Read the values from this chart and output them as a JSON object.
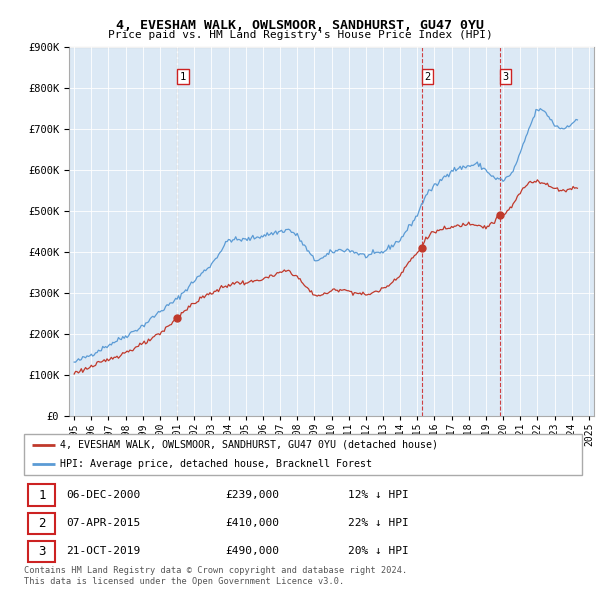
{
  "title": "4, EVESHAM WALK, OWLSMOOR, SANDHURST, GU47 0YU",
  "subtitle": "Price paid vs. HM Land Registry's House Price Index (HPI)",
  "legend_line1": "4, EVESHAM WALK, OWLSMOOR, SANDHURST, GU47 0YU (detached house)",
  "legend_line2": "HPI: Average price, detached house, Bracknell Forest",
  "footer1": "Contains HM Land Registry data © Crown copyright and database right 2024.",
  "footer2": "This data is licensed under the Open Government Licence v3.0.",
  "transactions": [
    {
      "num": 1,
      "date": "06-DEC-2000",
      "price": 239000,
      "pct": "12% ↓ HPI",
      "year": 2001.0
    },
    {
      "num": 2,
      "date": "07-APR-2015",
      "price": 410000,
      "pct": "22% ↓ HPI",
      "year": 2015.27
    },
    {
      "num": 3,
      "date": "21-OCT-2019",
      "price": 490000,
      "pct": "20% ↓ HPI",
      "year": 2019.8
    }
  ],
  "hpi_color": "#5b9bd5",
  "price_color": "#c0392b",
  "vline1_color": "#888888",
  "vline2_color": "#cc2222",
  "bg_color": "#dce9f5",
  "ylim": [
    0,
    900000
  ],
  "yticks": [
    0,
    100000,
    200000,
    300000,
    400000,
    500000,
    600000,
    700000,
    800000,
    900000
  ],
  "xlim_start": 1994.7,
  "xlim_end": 2025.3
}
